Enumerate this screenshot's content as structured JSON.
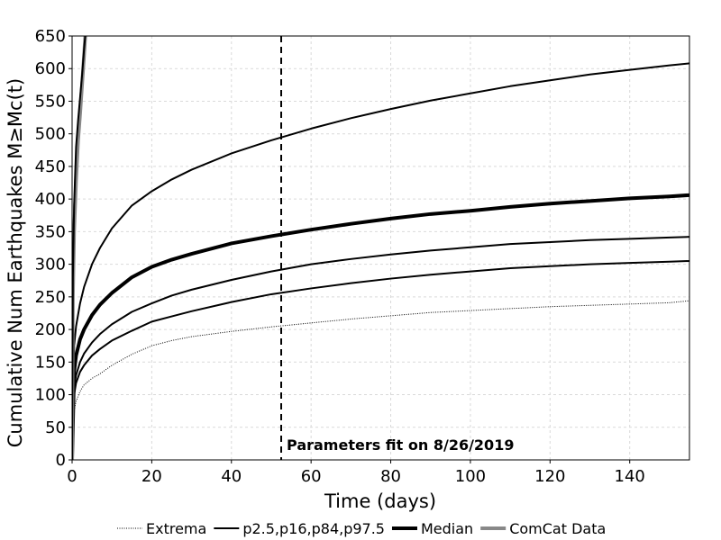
{
  "chart_data": {
    "type": "line",
    "title": "",
    "xlabel": "Time (days)",
    "ylabel": "Cumulative Num Earthquakes M≥Mc(t)",
    "xlim": [
      0,
      155
    ],
    "ylim": [
      0,
      650
    ],
    "xticks": [
      0,
      20,
      40,
      60,
      80,
      100,
      120,
      140
    ],
    "yticks": [
      0,
      50,
      100,
      150,
      200,
      250,
      300,
      350,
      400,
      450,
      500,
      550,
      600,
      650
    ],
    "grid": true,
    "legend_position": "bottom",
    "annotation": {
      "text": "Parameters fit on 8/26/2019",
      "x": 52.5
    },
    "series": [
      {
        "name": "Extrema",
        "style": "dotted",
        "color": "#000000",
        "x": [
          0,
          0.5,
          1,
          2,
          3,
          5,
          7,
          10,
          15,
          20,
          25,
          30,
          40,
          50,
          60,
          70,
          80,
          90,
          100,
          110,
          120,
          130,
          140,
          150,
          155
        ],
        "y": [
          0,
          75,
          90,
          105,
          115,
          125,
          132,
          145,
          162,
          175,
          183,
          189,
          197,
          204,
          210,
          216,
          221,
          226,
          229,
          232,
          235,
          237,
          239,
          241,
          244
        ]
      },
      {
        "name": "p2.5,p16,p84,p97.5",
        "style": "solid",
        "color": "#000000",
        "x": [
          0,
          0.5,
          1,
          2,
          3,
          5,
          7,
          10,
          15,
          20,
          25,
          30,
          40,
          50,
          60,
          70,
          80,
          90,
          100,
          110,
          120,
          130,
          140,
          150,
          155
        ],
        "y": [
          0,
          100,
          118,
          135,
          145,
          160,
          170,
          183,
          198,
          212,
          220,
          228,
          242,
          254,
          263,
          271,
          278,
          284,
          289,
          294,
          297,
          300,
          302,
          304,
          305
        ]
      },
      {
        "name": "p2.5,p16,p84,p97.5",
        "style": "solid",
        "color": "#000000",
        "x": [
          0,
          0.5,
          1,
          2,
          3,
          5,
          7,
          10,
          15,
          20,
          25,
          30,
          40,
          50,
          60,
          70,
          80,
          90,
          100,
          110,
          120,
          130,
          140,
          150,
          155
        ],
        "y": [
          0,
          112,
          130,
          150,
          163,
          180,
          193,
          208,
          227,
          240,
          252,
          261,
          276,
          289,
          300,
          308,
          315,
          321,
          326,
          331,
          334,
          337,
          339,
          341,
          342
        ]
      },
      {
        "name": "p2.5,p16,p84,p97.5",
        "style": "solid",
        "color": "#000000",
        "x": [
          0,
          0.5,
          1,
          2,
          3,
          5,
          7,
          10,
          15,
          20,
          25,
          30,
          40,
          50,
          60,
          70,
          80,
          90,
          100,
          110,
          120,
          130,
          140,
          150,
          155
        ],
        "y": [
          0,
          175,
          205,
          240,
          265,
          300,
          325,
          355,
          390,
          412,
          430,
          445,
          470,
          490,
          508,
          524,
          538,
          551,
          562,
          573,
          582,
          591,
          598,
          605,
          608
        ]
      },
      {
        "name": "Median",
        "style": "bold",
        "color": "#000000",
        "x": [
          0,
          0.5,
          1,
          2,
          3,
          5,
          7,
          10,
          15,
          20,
          25,
          30,
          40,
          50,
          60,
          70,
          80,
          90,
          100,
          110,
          120,
          130,
          140,
          150,
          155
        ],
        "y": [
          0,
          135,
          160,
          185,
          200,
          222,
          238,
          256,
          280,
          296,
          307,
          316,
          332,
          343,
          353,
          362,
          370,
          377,
          382,
          388,
          393,
          397,
          401,
          404,
          406
        ]
      },
      {
        "name": "ComCat Data",
        "style": "solid",
        "color": "#888888",
        "x": [
          0,
          0.2,
          0.5,
          1,
          1.5,
          2,
          2.5,
          3,
          3.3
        ],
        "y": [
          0,
          250,
          350,
          430,
          490,
          530,
          575,
          620,
          650
        ]
      },
      {
        "name": "",
        "style": "solid",
        "color": "#000000",
        "x": [
          0,
          0.2,
          0.5,
          1,
          1.5,
          2,
          2.5,
          3,
          3.3
        ],
        "y": [
          0,
          280,
          390,
          480,
          520,
          555,
          590,
          630,
          650
        ]
      }
    ],
    "legend": [
      {
        "label": "Extrema",
        "style": "dotted",
        "color": "#000000"
      },
      {
        "label": "p2.5,p16,p84,p97.5",
        "style": "solid",
        "color": "#000000"
      },
      {
        "label": "Median",
        "style": "bold",
        "color": "#000000"
      },
      {
        "label": "ComCat Data",
        "style": "solid",
        "color": "#888888"
      }
    ]
  }
}
